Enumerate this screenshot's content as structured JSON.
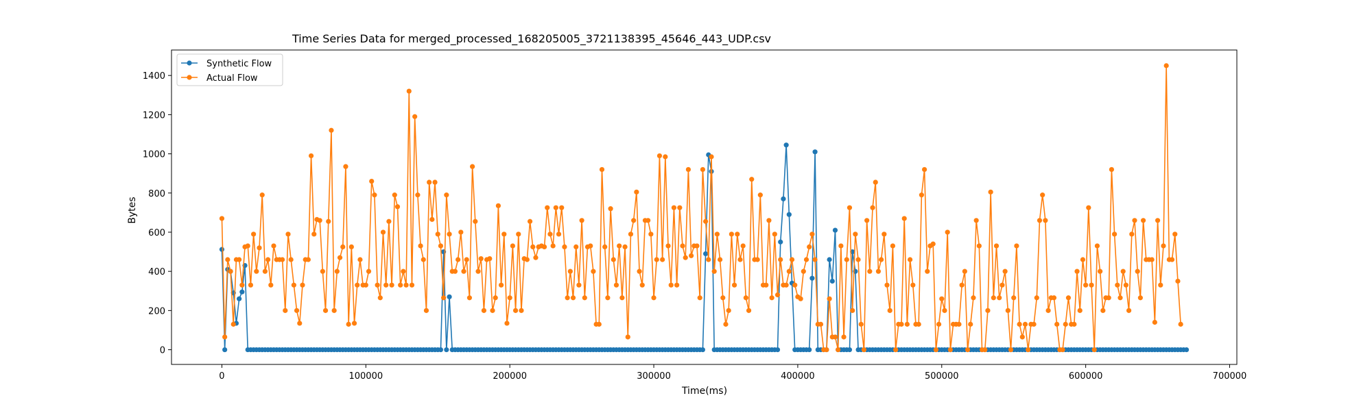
{
  "chart_data": {
    "type": "line",
    "title": "Time Series Data for merged_processed_168205005_3721138395_45646_443_UDP.csv",
    "xlabel": "Time(ms)",
    "ylabel": "Bytes",
    "xlim": [
      -35000,
      705000
    ],
    "ylim": [
      -75,
      1530
    ],
    "x_ticks": [
      0,
      100000,
      200000,
      300000,
      400000,
      500000,
      600000,
      700000
    ],
    "y_ticks": [
      0,
      200,
      400,
      600,
      800,
      1000,
      1200,
      1400
    ],
    "grid": false,
    "legend_position": "top-left",
    "series": [
      {
        "name": "Synthetic Flow",
        "color": "#1f77b4",
        "x_start": 0,
        "x_step": 2000,
        "default_value": 0,
        "nonzero": {
          "0": 512,
          "2": 410,
          "3": 400,
          "4": 290,
          "5": 135,
          "6": 260,
          "7": 295,
          "8": 430,
          "77": 500,
          "79": 270,
          "168": 490,
          "169": 995,
          "170": 910,
          "194": 550,
          "195": 770,
          "196": 1045,
          "197": 690,
          "198": 340,
          "205": 365,
          "206": 1010,
          "211": 460,
          "212": 350,
          "213": 610,
          "219": 500,
          "220": 400
        },
        "length": 336
      },
      {
        "name": "Actual Flow",
        "color": "#ff7f0e",
        "x_start": 0,
        "x_step": 2000,
        "values": [
          670,
          65,
          460,
          400,
          130,
          460,
          460,
          330,
          525,
          530,
          330,
          590,
          400,
          520,
          790,
          400,
          460,
          330,
          530,
          460,
          460,
          460,
          200,
          590,
          460,
          330,
          200,
          135,
          330,
          460,
          460,
          990,
          590,
          665,
          660,
          400,
          200,
          655,
          1120,
          200,
          400,
          470,
          525,
          935,
          130,
          525,
          135,
          330,
          460,
          330,
          330,
          400,
          860,
          790,
          330,
          265,
          600,
          330,
          655,
          330,
          790,
          730,
          330,
          400,
          330,
          1320,
          330,
          1190,
          790,
          530,
          460,
          200,
          855,
          665,
          855,
          590,
          530,
          265,
          790,
          590,
          400,
          400,
          460,
          600,
          400,
          460,
          265,
          935,
          655,
          400,
          465,
          200,
          460,
          465,
          200,
          265,
          735,
          330,
          590,
          135,
          265,
          530,
          200,
          590,
          200,
          465,
          460,
          655,
          525,
          470,
          525,
          530,
          525,
          725,
          590,
          530,
          725,
          590,
          725,
          525,
          265,
          400,
          265,
          525,
          330,
          660,
          265,
          525,
          530,
          400,
          130,
          130,
          920,
          525,
          265,
          720,
          460,
          330,
          530,
          265,
          525,
          65,
          590,
          660,
          805,
          400,
          330,
          660,
          660,
          590,
          265,
          460,
          990,
          460,
          985,
          530,
          330,
          725,
          330,
          725,
          530,
          470,
          920,
          480,
          530,
          530,
          265,
          920,
          655,
          460,
          985,
          400,
          590,
          460,
          265,
          130,
          200,
          590,
          330,
          590,
          460,
          530,
          265,
          200,
          870,
          460,
          460,
          790,
          330,
          330,
          660,
          265,
          590,
          280,
          460,
          330,
          330,
          400,
          460,
          330,
          270,
          260,
          400,
          460,
          525,
          590,
          460,
          130,
          130,
          0,
          0,
          260,
          65,
          65,
          0,
          530,
          65,
          460,
          725,
          200,
          590,
          460,
          130,
          0,
          660,
          400,
          725,
          855,
          400,
          460,
          590,
          330,
          200,
          530,
          0,
          130,
          130,
          670,
          130,
          460,
          330,
          130,
          130,
          790,
          920,
          400,
          530,
          540,
          0,
          130,
          260,
          200,
          600,
          0,
          130,
          130,
          130,
          330,
          400,
          0,
          130,
          265,
          660,
          530,
          0,
          0,
          200,
          805,
          265,
          530,
          265,
          330,
          400,
          200,
          0,
          265,
          530,
          130,
          65,
          130,
          0,
          130,
          130,
          265,
          660,
          790,
          660,
          200,
          265,
          265,
          130,
          0,
          0,
          130,
          265,
          130,
          130,
          400,
          200,
          460,
          330,
          725,
          330,
          0,
          530,
          400,
          200,
          265,
          265,
          920,
          590,
          330,
          265,
          400,
          330,
          200,
          590,
          660,
          400,
          265,
          660,
          460,
          460,
          460,
          140,
          660,
          330,
          530,
          1450,
          460,
          460,
          590,
          350,
          130
        ]
      }
    ]
  }
}
